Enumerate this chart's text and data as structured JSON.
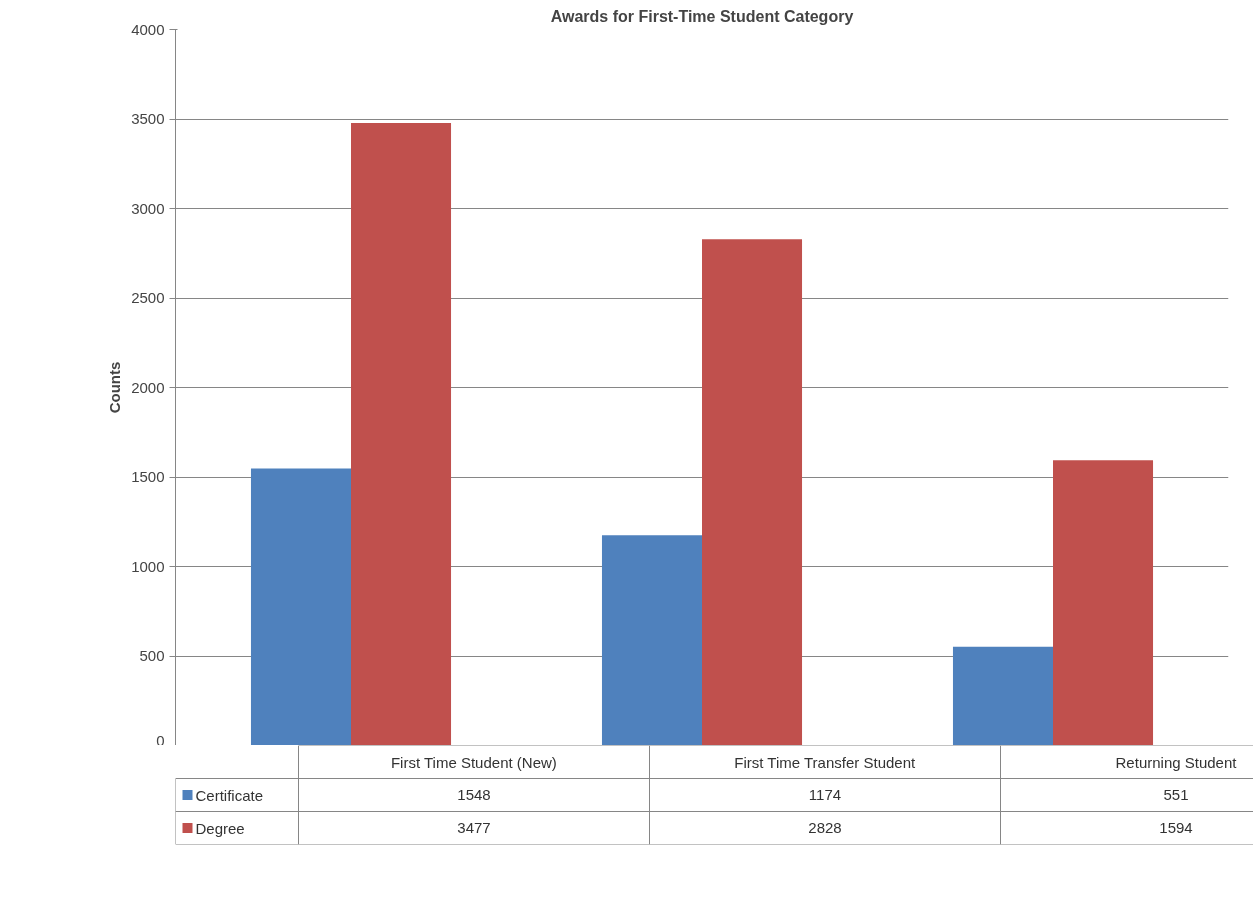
{
  "chart_data": {
    "type": "bar",
    "title": "Awards for First-Time Student Category",
    "ylabel": "Counts",
    "categories": [
      "First Time Student (New)",
      "First Time Transfer Student",
      "Returning Student"
    ],
    "series": [
      {
        "name": "Certificate",
        "color": "#4f81bd",
        "values": [
          1548,
          1174,
          551
        ]
      },
      {
        "name": "Degree",
        "color": "#c0504d",
        "values": [
          3477,
          2828,
          1594
        ]
      }
    ],
    "ylim": [
      0,
      4000
    ],
    "yticks": [
      0,
      500,
      1000,
      1500,
      2000,
      2500,
      3000,
      3500,
      4000
    ],
    "grid": "y",
    "legend": "bottom",
    "data_labels": true
  }
}
